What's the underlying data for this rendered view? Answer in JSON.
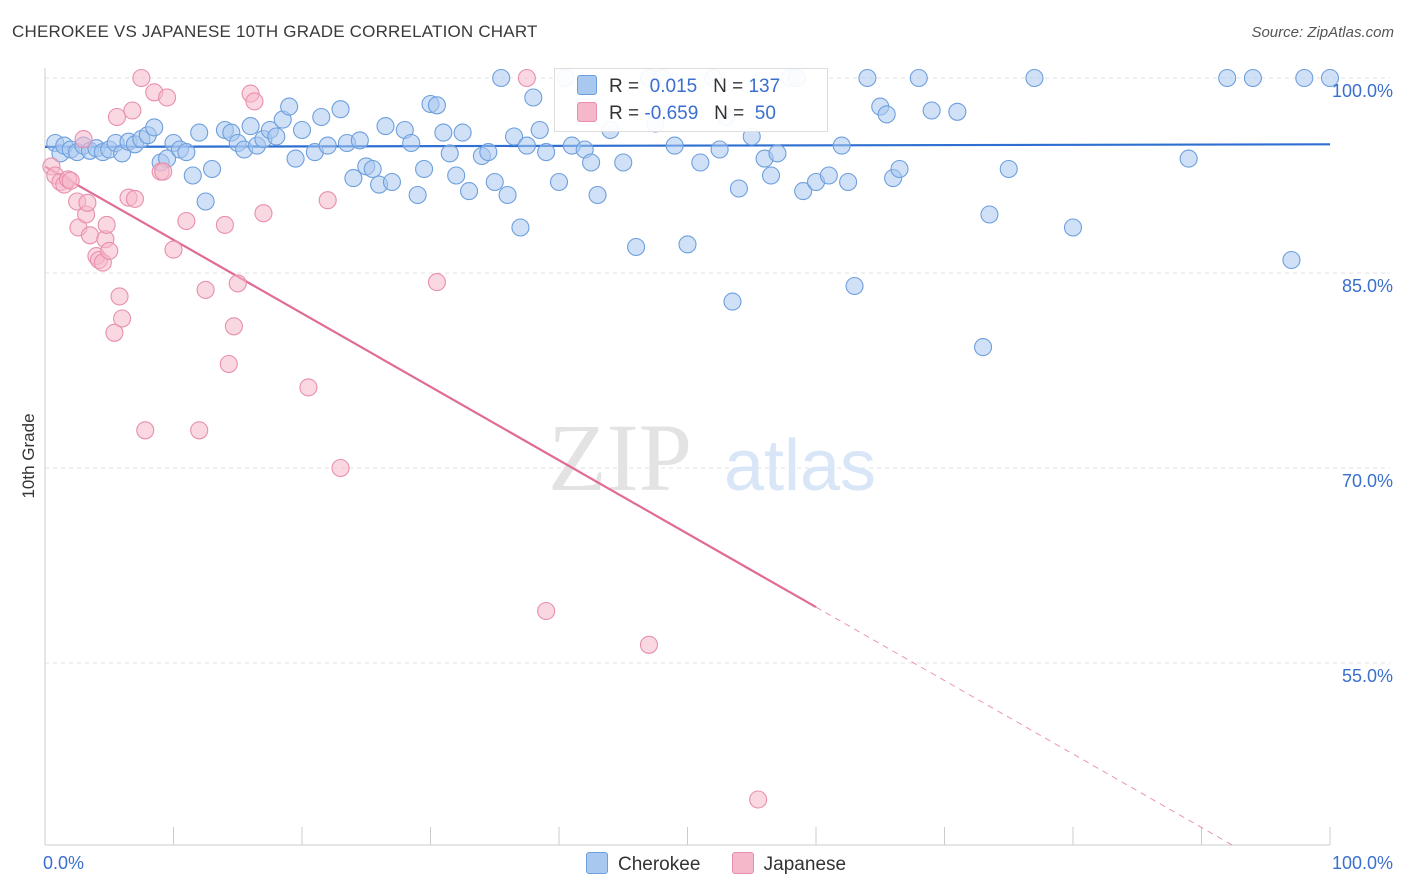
{
  "header": {
    "title": "CHEROKEE VS JAPANESE 10TH GRADE CORRELATION CHART",
    "source": "Source: ZipAtlas.com"
  },
  "colors": {
    "cherokee_fill": "#a9c8f0",
    "cherokee_stroke": "#6d9fdd",
    "cherokee_line": "#2e6fd1",
    "japanese_fill": "#f5b8cb",
    "japanese_stroke": "#e88fac",
    "japanese_line": "#e06b96",
    "value_text": "#3a6fd0",
    "grid": "#e2e2e2"
  },
  "legend": {
    "rows": [
      {
        "r_label": "R =",
        "r_value": "0.015",
        "n_label": "N =",
        "n_value": "137"
      },
      {
        "r_label": "R =",
        "r_value": "-0.659",
        "n_label": "N =",
        "n_value": "50"
      }
    ]
  },
  "bottom_legend": {
    "items": [
      "Cherokee",
      "Japanese"
    ]
  },
  "watermark": {
    "zip": "ZIP",
    "atlas": "atlas"
  },
  "chart_data": {
    "type": "scatter",
    "title": "CHEROKEE VS JAPANESE 10TH GRADE CORRELATION CHART",
    "xlabel": "",
    "ylabel": "10th Grade",
    "xlim": [
      0,
      100
    ],
    "ylim": [
      41,
      100
    ],
    "x_ticks": [
      "0.0%",
      "100.0%"
    ],
    "y_ticks": [
      {
        "value": 100,
        "label": "100.0%"
      },
      {
        "value": 85,
        "label": "85.0%"
      },
      {
        "value": 70,
        "label": "70.0%"
      },
      {
        "value": 55,
        "label": "55.0%"
      }
    ],
    "grid": true,
    "legend_position": "top-center",
    "series": [
      {
        "name": "Cherokee",
        "r": 0.015,
        "n": 137,
        "trend": {
          "x": [
            0,
            100
          ],
          "y": [
            94.7,
            94.9
          ],
          "solid_until": 100
        },
        "points": [
          [
            0.8,
            95
          ],
          [
            1.2,
            94.2
          ],
          [
            1.5,
            94.8
          ],
          [
            2,
            94.5
          ],
          [
            2.5,
            94.3
          ],
          [
            3,
            94.8
          ],
          [
            3.5,
            94.4
          ],
          [
            4,
            94.6
          ],
          [
            4.5,
            94.3
          ],
          [
            5,
            94.5
          ],
          [
            5.5,
            95
          ],
          [
            6,
            94.2
          ],
          [
            6.5,
            95.1
          ],
          [
            7,
            94.9
          ],
          [
            7.5,
            95.3
          ],
          [
            8,
            95.6
          ],
          [
            8.5,
            96.2
          ],
          [
            9,
            93.5
          ],
          [
            9.5,
            93.8
          ],
          [
            10,
            95
          ],
          [
            10.5,
            94.5
          ],
          [
            11,
            94.3
          ],
          [
            11.5,
            92.5
          ],
          [
            12,
            95.8
          ],
          [
            12.5,
            90.5
          ],
          [
            13,
            93
          ],
          [
            14,
            96
          ],
          [
            14.5,
            95.8
          ],
          [
            15,
            95
          ],
          [
            15.5,
            94.5
          ],
          [
            16,
            96.3
          ],
          [
            16.5,
            94.8
          ],
          [
            17,
            95.3
          ],
          [
            17.5,
            96
          ],
          [
            18,
            95.5
          ],
          [
            18.5,
            96.8
          ],
          [
            19,
            97.8
          ],
          [
            19.5,
            93.8
          ],
          [
            20,
            96
          ],
          [
            21,
            94.3
          ],
          [
            21.5,
            97
          ],
          [
            22,
            94.8
          ],
          [
            23,
            97.6
          ],
          [
            23.5,
            95
          ],
          [
            24,
            92.3
          ],
          [
            24.5,
            95.2
          ],
          [
            25,
            93.2
          ],
          [
            25.5,
            93
          ],
          [
            26,
            91.8
          ],
          [
            26.5,
            96.3
          ],
          [
            27,
            92
          ],
          [
            28,
            96
          ],
          [
            28.5,
            95
          ],
          [
            29,
            91
          ],
          [
            29.5,
            93
          ],
          [
            30,
            98
          ],
          [
            30.5,
            97.9
          ],
          [
            31,
            95.8
          ],
          [
            31.5,
            94.2
          ],
          [
            32,
            92.5
          ],
          [
            32.5,
            95.8
          ],
          [
            33,
            91.3
          ],
          [
            34,
            94
          ],
          [
            34.5,
            94.3
          ],
          [
            35,
            92
          ],
          [
            35.5,
            100
          ],
          [
            36,
            91
          ],
          [
            36.5,
            95.5
          ],
          [
            37,
            88.5
          ],
          [
            37.5,
            94.8
          ],
          [
            38,
            98.5
          ],
          [
            38.5,
            96
          ],
          [
            39,
            94.3
          ],
          [
            40,
            92
          ],
          [
            40.5,
            100
          ],
          [
            41,
            94.8
          ],
          [
            42,
            94.5
          ],
          [
            42.5,
            93.5
          ],
          [
            43,
            91
          ],
          [
            44,
            96
          ],
          [
            45,
            93.5
          ],
          [
            46,
            87
          ],
          [
            47,
            100
          ],
          [
            47.5,
            96.5
          ],
          [
            48,
            100
          ],
          [
            49,
            94.8
          ],
          [
            50,
            87.2
          ],
          [
            51,
            93.5
          ],
          [
            52,
            100
          ],
          [
            52.5,
            94.5
          ],
          [
            53,
            97
          ],
          [
            53.5,
            82.8
          ],
          [
            54,
            91.5
          ],
          [
            55,
            95.5
          ],
          [
            56,
            93.8
          ],
          [
            56.5,
            92.5
          ],
          [
            57,
            94.2
          ],
          [
            58,
            100
          ],
          [
            58.5,
            100
          ],
          [
            59,
            91.3
          ],
          [
            60,
            92
          ],
          [
            61,
            92.5
          ],
          [
            62,
            94.8
          ],
          [
            62.5,
            92
          ],
          [
            63,
            84
          ],
          [
            64,
            100
          ],
          [
            65,
            97.8
          ],
          [
            65.5,
            97.2
          ],
          [
            66,
            92.3
          ],
          [
            66.5,
            93
          ],
          [
            68,
            100
          ],
          [
            69,
            97.5
          ],
          [
            71,
            97.4
          ],
          [
            73,
            79.3
          ],
          [
            73.5,
            89.5
          ],
          [
            75,
            93
          ],
          [
            77,
            100
          ],
          [
            80,
            88.5
          ],
          [
            89,
            93.8
          ],
          [
            92,
            100
          ],
          [
            94,
            100
          ],
          [
            97,
            86
          ],
          [
            98,
            100
          ],
          [
            100,
            100
          ]
        ]
      },
      {
        "name": "Japanese",
        "r": -0.659,
        "n": 50,
        "trend": {
          "x": [
            0,
            100
          ],
          "y": [
            93.2,
            36.7
          ],
          "solid_until": 60
        },
        "points": [
          [
            0.5,
            93.2
          ],
          [
            0.8,
            92.5
          ],
          [
            1.2,
            92
          ],
          [
            1.5,
            91.8
          ],
          [
            1.8,
            92.2
          ],
          [
            2,
            92.1
          ],
          [
            2.5,
            90.5
          ],
          [
            2.6,
            88.5
          ],
          [
            3,
            95.3
          ],
          [
            3.2,
            89.5
          ],
          [
            3.3,
            90.4
          ],
          [
            3.5,
            87.9
          ],
          [
            4,
            86.3
          ],
          [
            4.2,
            86
          ],
          [
            4.5,
            85.8
          ],
          [
            4.7,
            87.6
          ],
          [
            4.8,
            88.7
          ],
          [
            5,
            86.7
          ],
          [
            5.4,
            80.4
          ],
          [
            5.6,
            97
          ],
          [
            5.8,
            83.2
          ],
          [
            6,
            81.5
          ],
          [
            6.5,
            90.8
          ],
          [
            6.8,
            97.5
          ],
          [
            7,
            90.7
          ],
          [
            7.5,
            100
          ],
          [
            7.8,
            72.9
          ],
          [
            8.5,
            98.9
          ],
          [
            9,
            92.8
          ],
          [
            9.2,
            92.8
          ],
          [
            9.5,
            98.5
          ],
          [
            10,
            86.8
          ],
          [
            11,
            89
          ],
          [
            12,
            72.9
          ],
          [
            12.5,
            83.7
          ],
          [
            14,
            88.7
          ],
          [
            14.3,
            78
          ],
          [
            14.7,
            80.9
          ],
          [
            15,
            84.2
          ],
          [
            16,
            98.8
          ],
          [
            16.3,
            98.2
          ],
          [
            17,
            89.6
          ],
          [
            20.5,
            76.2
          ],
          [
            22,
            90.6
          ],
          [
            23,
            70
          ],
          [
            30.5,
            84.3
          ],
          [
            37.5,
            100
          ],
          [
            39,
            59
          ],
          [
            47,
            56.4
          ],
          [
            55.5,
            44.5
          ]
        ]
      }
    ]
  }
}
